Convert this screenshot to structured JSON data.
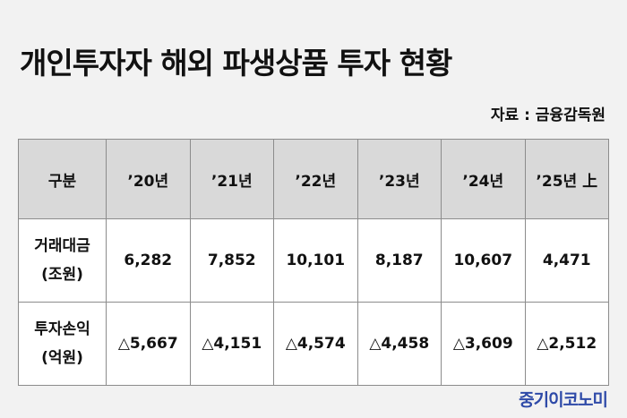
{
  "header": {
    "title": "개인투자자 해외 파생상품 투자 현황",
    "source": "자료 : 금융감독원"
  },
  "table": {
    "columns": [
      "구분",
      "’20년",
      "’21년",
      "’22년",
      "’23년",
      "’24년",
      "’25년 上"
    ],
    "rows": [
      {
        "label": [
          "거래대금",
          "(조원)"
        ],
        "cells": [
          "6,282",
          "7,852",
          "10,101",
          "8,187",
          "10,607",
          "4,471"
        ]
      },
      {
        "label": [
          "투자손익",
          "(억원)"
        ],
        "cells": [
          "△5,667",
          "△4,151",
          "△4,574",
          "△4,458",
          "△3,609",
          "△2,512"
        ]
      }
    ]
  },
  "footer": {
    "logo": "중기이코노미"
  }
}
